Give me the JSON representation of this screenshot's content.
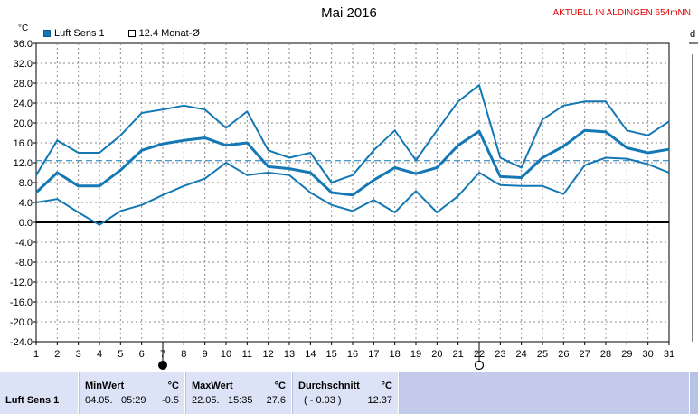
{
  "header": {
    "title": "Mai 2016",
    "station": "AKTUELL IN ALDINGEN 654mNN",
    "unit": "°C",
    "right_edge_label": "d"
  },
  "legend": [
    {
      "label": "Luft Sens 1"
    },
    {
      "label": "12.4 Monat-Ø"
    }
  ],
  "stats": {
    "sensor": "Luft Sens 1",
    "min": {
      "label": "MinWert",
      "unit": "°C",
      "date": "04.05.",
      "time": "05:29",
      "value": "-0.5"
    },
    "max": {
      "label": "MaxWert",
      "unit": "°C",
      "date": "22.05.",
      "time": "15:35",
      "value": "27.6"
    },
    "avg": {
      "label": "Durchschnitt",
      "unit": "°C",
      "note": "( - 0.03 )",
      "value": "12.37"
    }
  },
  "chart_data": {
    "type": "line",
    "title": "Mai 2016",
    "ylabel": "°C",
    "ylim": [
      -24,
      36
    ],
    "yticks": [
      "36.0",
      "32.0",
      "28.0",
      "24.0",
      "20.0",
      "16.0",
      "12.0",
      "8.0",
      "4.0",
      "0.0",
      "-4.0",
      "-8.0",
      "-12.0",
      "-16.0",
      "-20.0",
      "-24.0"
    ],
    "x": [
      1,
      2,
      3,
      4,
      5,
      6,
      7,
      8,
      9,
      10,
      11,
      12,
      13,
      14,
      15,
      16,
      17,
      18,
      19,
      20,
      21,
      22,
      23,
      24,
      25,
      26,
      27,
      28,
      29,
      30,
      31
    ],
    "grid": true,
    "legend_position": "top-left",
    "series": [
      {
        "name": "Luft Sens 1",
        "role": "max",
        "color": "#1478b4",
        "values": [
          9.5,
          16.5,
          14,
          14,
          17.5,
          22,
          22.7,
          23.5,
          22.7,
          19,
          22.3,
          14.5,
          13,
          14,
          8,
          9.5,
          14.5,
          18.5,
          12.5,
          18.5,
          24.3,
          27.6,
          13,
          11,
          20.7,
          23.5,
          24.3,
          24.3,
          18.5,
          17.5,
          20.3
        ]
      },
      {
        "name": "Luft Sens 1",
        "role": "avg",
        "color": "#1478b4",
        "values": [
          6,
          10,
          7.3,
          7.3,
          10.5,
          14.5,
          15.8,
          16.5,
          17,
          15.5,
          16,
          11.2,
          10.8,
          10,
          6,
          5.5,
          8.5,
          11,
          9.8,
          11,
          15.5,
          18.3,
          9.2,
          9,
          13,
          15.3,
          18.5,
          18.2,
          15,
          14,
          14.7
        ]
      },
      {
        "name": "Luft Sens 1",
        "role": "min",
        "color": "#1478b4",
        "values": [
          4,
          4.7,
          2,
          -0.5,
          2.3,
          3.5,
          5.5,
          7.3,
          8.8,
          12,
          9.5,
          10,
          9.5,
          6,
          3.5,
          2.3,
          4.5,
          2,
          6.3,
          2,
          5.3,
          10,
          7.5,
          7.3,
          7.3,
          5.7,
          11.5,
          13,
          12.8,
          11.7,
          10
        ]
      }
    ],
    "reference": {
      "name": "12.4 Monat-Ø",
      "value": 12.4,
      "color": "#1478b4"
    },
    "zero_line": 0,
    "markers": [
      {
        "day": 7,
        "symbol": "new-moon"
      },
      {
        "day": 22,
        "symbol": "full-moon"
      }
    ]
  }
}
